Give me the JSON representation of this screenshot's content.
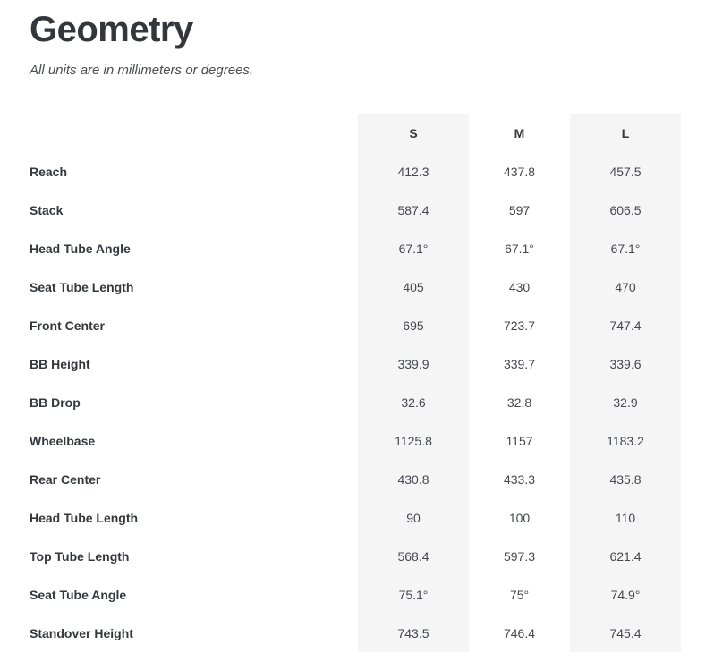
{
  "header": {
    "title": "Geometry",
    "subtitle": "All units are in millimeters or degrees."
  },
  "table": {
    "columns": [
      "S",
      "M",
      "L"
    ],
    "rows": [
      {
        "label": "Reach",
        "values": [
          "412.3",
          "437.8",
          "457.5"
        ]
      },
      {
        "label": "Stack",
        "values": [
          "587.4",
          "597",
          "606.5"
        ]
      },
      {
        "label": "Head Tube Angle",
        "values": [
          "67.1°",
          "67.1°",
          "67.1°"
        ]
      },
      {
        "label": "Seat Tube Length",
        "values": [
          "405",
          "430",
          "470"
        ]
      },
      {
        "label": "Front Center",
        "values": [
          "695",
          "723.7",
          "747.4"
        ]
      },
      {
        "label": "BB Height",
        "values": [
          "339.9",
          "339.7",
          "339.6"
        ]
      },
      {
        "label": "BB Drop",
        "values": [
          "32.6",
          "32.8",
          "32.9"
        ]
      },
      {
        "label": "Wheelbase",
        "values": [
          "1125.8",
          "1157",
          "1183.2"
        ]
      },
      {
        "label": "Rear Center",
        "values": [
          "430.8",
          "433.3",
          "435.8"
        ]
      },
      {
        "label": "Head Tube Length",
        "values": [
          "90",
          "100",
          "110"
        ]
      },
      {
        "label": "Top Tube Length",
        "values": [
          "568.4",
          "597.3",
          "621.4"
        ]
      },
      {
        "label": "Seat Tube Angle",
        "values": [
          "75.1°",
          "75°",
          "74.9°"
        ]
      },
      {
        "label": "Standover Height",
        "values": [
          "743.5",
          "746.4",
          "745.4"
        ]
      }
    ]
  },
  "colors": {
    "column_shade": "#f5f5f5",
    "title_text": "#33363b",
    "label_text": "#34383d",
    "value_text": "#44484c"
  }
}
